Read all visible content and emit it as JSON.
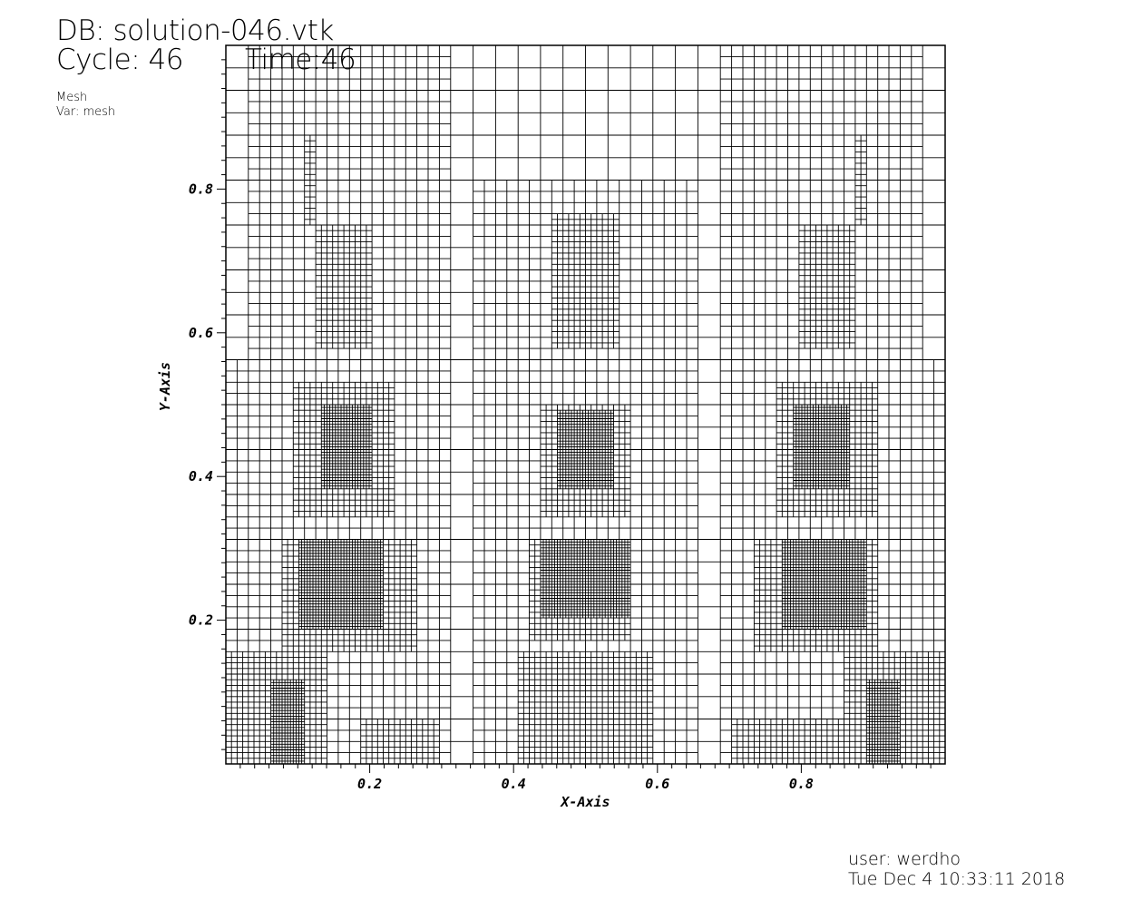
{
  "header": {
    "db_line": "DB: solution-046.vtk",
    "cycle_line": "Cycle: 46",
    "time_line": "Time:46",
    "plot_label": "Mesh",
    "var_label": "Var: mesh"
  },
  "footer": {
    "user_line": "user: werdho",
    "date_line": "Tue Dec  4 10:33:11 2018"
  },
  "chart_data": {
    "type": "mesh",
    "title": "",
    "xlabel": "X-Axis",
    "ylabel": "Y-Axis",
    "xlim": [
      0,
      1
    ],
    "ylim": [
      0,
      1
    ],
    "x_major_ticks": [
      0.2,
      0.4,
      0.6,
      0.8
    ],
    "y_major_ticks": [
      0.2,
      0.4,
      0.6,
      0.8
    ],
    "x_tick_labels": [
      "0.2",
      "0.4",
      "0.6",
      "0.8"
    ],
    "y_tick_labels": [
      "0.2",
      "0.4",
      "0.6",
      "0.8"
    ],
    "minor_tick_step": 0.02,
    "mesh": {
      "base_level": 5,
      "max_level": 8,
      "level_bands": [
        {
          "level": 7,
          "x_range": [
            0.0,
            0.14
          ],
          "y_range": [
            0.0,
            0.16
          ]
        },
        {
          "level": 8,
          "x_range": [
            0.06,
            0.11
          ],
          "y_range": [
            0.0,
            0.12
          ]
        },
        {
          "level": 7,
          "x_range": [
            0.08,
            0.26
          ],
          "y_range": [
            0.16,
            0.31
          ]
        },
        {
          "level": 8,
          "x_range": [
            0.1,
            0.22
          ],
          "y_range": [
            0.19,
            0.31
          ]
        },
        {
          "level": 7,
          "x_range": [
            0.09,
            0.23
          ],
          "y_range": [
            0.34,
            0.53
          ]
        },
        {
          "level": 8,
          "x_range": [
            0.13,
            0.2
          ],
          "y_range": [
            0.38,
            0.5
          ]
        },
        {
          "level": 7,
          "x_range": [
            0.19,
            0.29
          ],
          "y_range": [
            0.0,
            0.06
          ]
        },
        {
          "level": 7,
          "x_range": [
            0.42,
            0.57
          ],
          "y_range": [
            0.17,
            0.31
          ]
        },
        {
          "level": 8,
          "x_range": [
            0.44,
            0.56
          ],
          "y_range": [
            0.2,
            0.31
          ]
        },
        {
          "level": 7,
          "x_range": [
            0.44,
            0.56
          ],
          "y_range": [
            0.34,
            0.5
          ]
        },
        {
          "level": 8,
          "x_range": [
            0.46,
            0.54
          ],
          "y_range": [
            0.38,
            0.49
          ]
        },
        {
          "level": 7,
          "x_range": [
            0.41,
            0.59
          ],
          "y_range": [
            0.0,
            0.15
          ]
        },
        {
          "level": 7,
          "x_range": [
            0.45,
            0.55
          ],
          "y_range": [
            0.58,
            0.77
          ]
        },
        {
          "level": 7,
          "x_range": [
            0.73,
            0.91
          ],
          "y_range": [
            0.16,
            0.31
          ]
        },
        {
          "level": 8,
          "x_range": [
            0.77,
            0.89
          ],
          "y_range": [
            0.19,
            0.31
          ]
        },
        {
          "level": 7,
          "x_range": [
            0.76,
            0.91
          ],
          "y_range": [
            0.34,
            0.53
          ]
        },
        {
          "level": 8,
          "x_range": [
            0.79,
            0.87
          ],
          "y_range": [
            0.38,
            0.5
          ]
        },
        {
          "level": 7,
          "x_range": [
            0.71,
            0.86
          ],
          "y_range": [
            0.0,
            0.06
          ]
        },
        {
          "level": 7,
          "x_range": [
            0.86,
            1.0
          ],
          "y_range": [
            0.0,
            0.16
          ]
        },
        {
          "level": 8,
          "x_range": [
            0.89,
            0.94
          ],
          "y_range": [
            0.0,
            0.12
          ]
        },
        {
          "level": 7,
          "x_range": [
            0.12,
            0.2
          ],
          "y_range": [
            0.58,
            0.75
          ]
        },
        {
          "level": 7,
          "x_range": [
            0.8,
            0.88
          ],
          "y_range": [
            0.58,
            0.75
          ]
        },
        {
          "level": 7,
          "x_range": [
            0.11,
            0.13
          ],
          "y_range": [
            0.75,
            0.87
          ]
        },
        {
          "level": 7,
          "x_range": [
            0.87,
            0.89
          ],
          "y_range": [
            0.75,
            0.87
          ]
        },
        {
          "level": 6,
          "x_range": [
            0.0,
            0.31
          ],
          "y_range": [
            0.0,
            0.56
          ]
        },
        {
          "level": 6,
          "x_range": [
            0.69,
            1.0
          ],
          "y_range": [
            0.0,
            0.56
          ]
        },
        {
          "level": 6,
          "x_range": [
            0.34,
            0.66
          ],
          "y_range": [
            0.0,
            0.81
          ]
        },
        {
          "level": 6,
          "x_range": [
            0.03,
            0.3
          ],
          "y_range": [
            0.56,
            1.0
          ]
        },
        {
          "level": 6,
          "x_range": [
            0.7,
            0.97
          ],
          "y_range": [
            0.56,
            1.0
          ]
        }
      ]
    }
  }
}
